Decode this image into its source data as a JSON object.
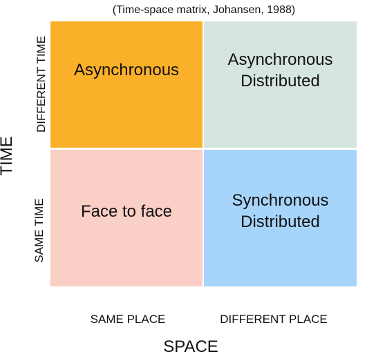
{
  "caption": "(Time-space matrix, Johansen, 1988)",
  "axes": {
    "y_label": "TIME",
    "x_label": "SPACE"
  },
  "rows": [
    {
      "label": "DIFFERENT TIME"
    },
    {
      "label": "SAME TIME"
    }
  ],
  "columns": [
    {
      "label": "SAME PLACE"
    },
    {
      "label": "DIFFERENT PLACE"
    }
  ],
  "cells": {
    "different_time_same_place": {
      "text": "Asynchronous",
      "color": "#fbb02a"
    },
    "different_time_different_place": {
      "text": "Asynchronous\nDistributed",
      "color": "#d6e6de"
    },
    "same_time_same_place": {
      "text": "Face to face",
      "color": "#f9cfc6"
    },
    "same_time_different_place": {
      "text": "Synchronous\nDistributed",
      "color": "#a7d4fa"
    }
  }
}
